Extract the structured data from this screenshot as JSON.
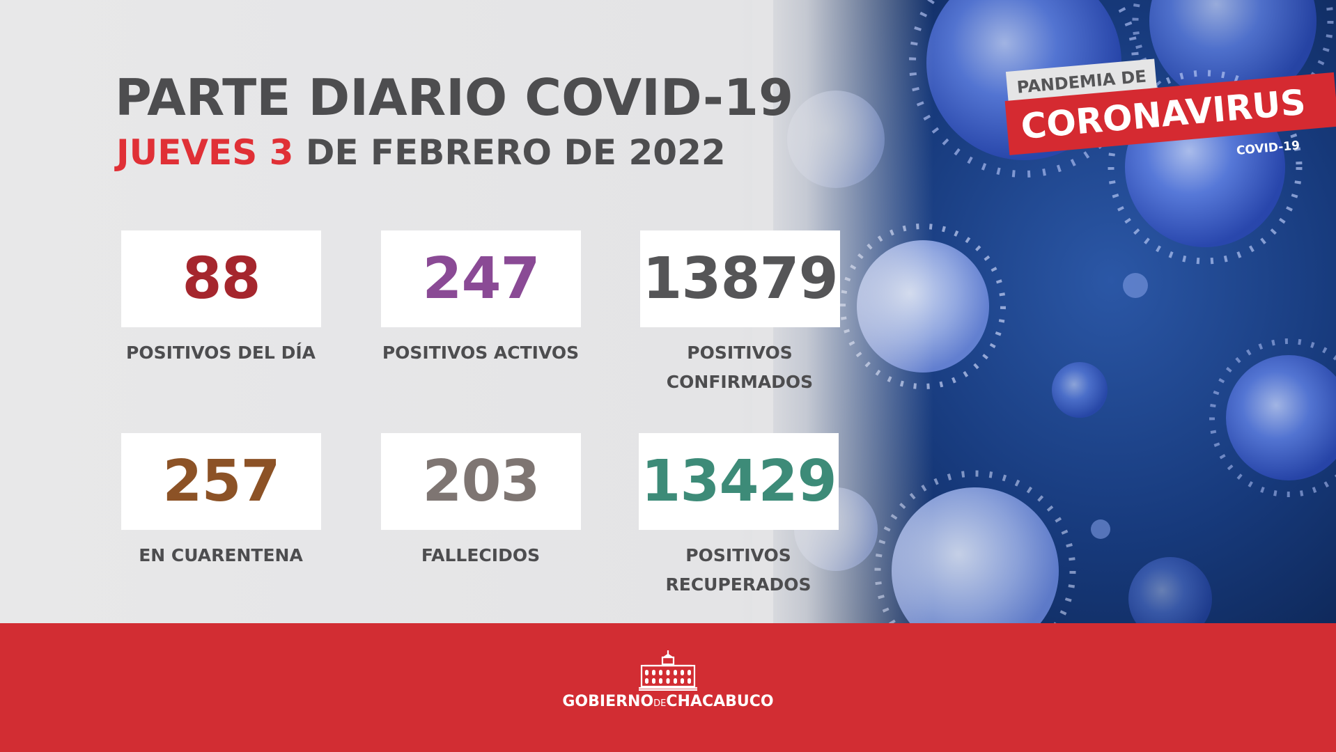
{
  "header": {
    "title": "PARTE DIARIO COVID-19",
    "date_weekday": "JUEVES",
    "date_day": "3",
    "date_rest": " DE FEBRERO DE 2022"
  },
  "badge": {
    "top": "PANDEMIA DE",
    "main": "CORONAVIRUS",
    "sub": "COVID-19"
  },
  "stats": [
    {
      "value": "88",
      "label": "POSITIVOS DEL DÍA",
      "color": "#a5262d"
    },
    {
      "value": "247",
      "label": "POSITIVOS ACTIVOS",
      "color": "#8a4a95"
    },
    {
      "value": "13879",
      "label_line1": "POSITIVOS",
      "label_line2": "CONFIRMADOS",
      "color": "#555557"
    },
    {
      "value": "257",
      "label": "EN CUARENTENA",
      "color": "#8c5226"
    },
    {
      "value": "203",
      "label": "FALLECIDOS",
      "color": "#7e7572"
    },
    {
      "value": "13429",
      "label_line1": "POSITIVOS",
      "label_line2": "RECUPERADOS",
      "color": "#3d8b78"
    }
  ],
  "footer": {
    "brand_left": "GOBIERNO",
    "brand_mid": "DE",
    "brand_right": "CHACABUCO"
  },
  "colors": {
    "accent_red": "#d22d33",
    "title_gray": "#4d4d4f",
    "virus_blue": "#1c3f86"
  },
  "icons": [
    "government-building-icon",
    "virus-illustration"
  ]
}
